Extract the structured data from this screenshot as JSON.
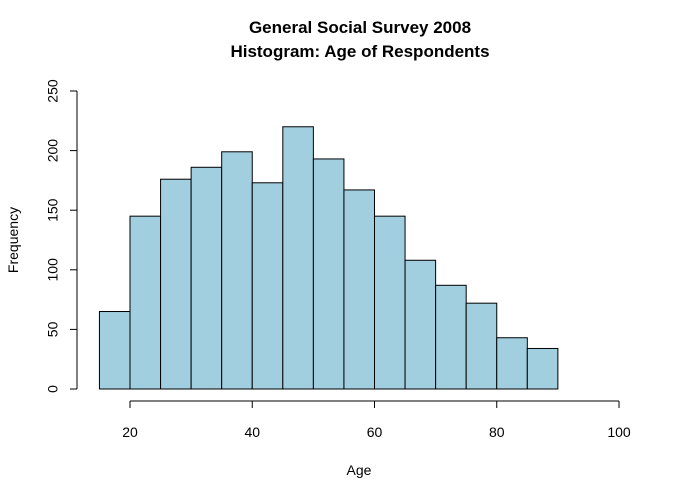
{
  "chart_data": {
    "type": "bar",
    "title_line1": "General Social Survey 2008",
    "title_line2": "Histogram: Age of Respondents",
    "xlabel": "Age",
    "ylabel": "Frequency",
    "bins": [
      {
        "x0": 15,
        "x1": 20,
        "value": 65
      },
      {
        "x0": 20,
        "x1": 25,
        "value": 145
      },
      {
        "x0": 25,
        "x1": 30,
        "value": 176
      },
      {
        "x0": 30,
        "x1": 35,
        "value": 186
      },
      {
        "x0": 35,
        "x1": 40,
        "value": 199
      },
      {
        "x0": 40,
        "x1": 45,
        "value": 173
      },
      {
        "x0": 45,
        "x1": 50,
        "value": 220
      },
      {
        "x0": 50,
        "x1": 55,
        "value": 193
      },
      {
        "x0": 55,
        "x1": 60,
        "value": 167
      },
      {
        "x0": 60,
        "x1": 65,
        "value": 145
      },
      {
        "x0": 65,
        "x1": 70,
        "value": 108
      },
      {
        "x0": 70,
        "x1": 75,
        "value": 87
      },
      {
        "x0": 75,
        "x1": 80,
        "value": 72
      },
      {
        "x0": 80,
        "x1": 85,
        "value": 43
      },
      {
        "x0": 85,
        "x1": 90,
        "value": 34
      }
    ],
    "xticks": [
      "20",
      "40",
      "60",
      "80",
      "100"
    ],
    "yticks": [
      "0",
      "50",
      "100",
      "150",
      "200",
      "250"
    ],
    "xlim": [
      20,
      100
    ],
    "ylim": [
      0,
      250
    ],
    "bar_color": "#a1cfe0",
    "grid": false
  }
}
